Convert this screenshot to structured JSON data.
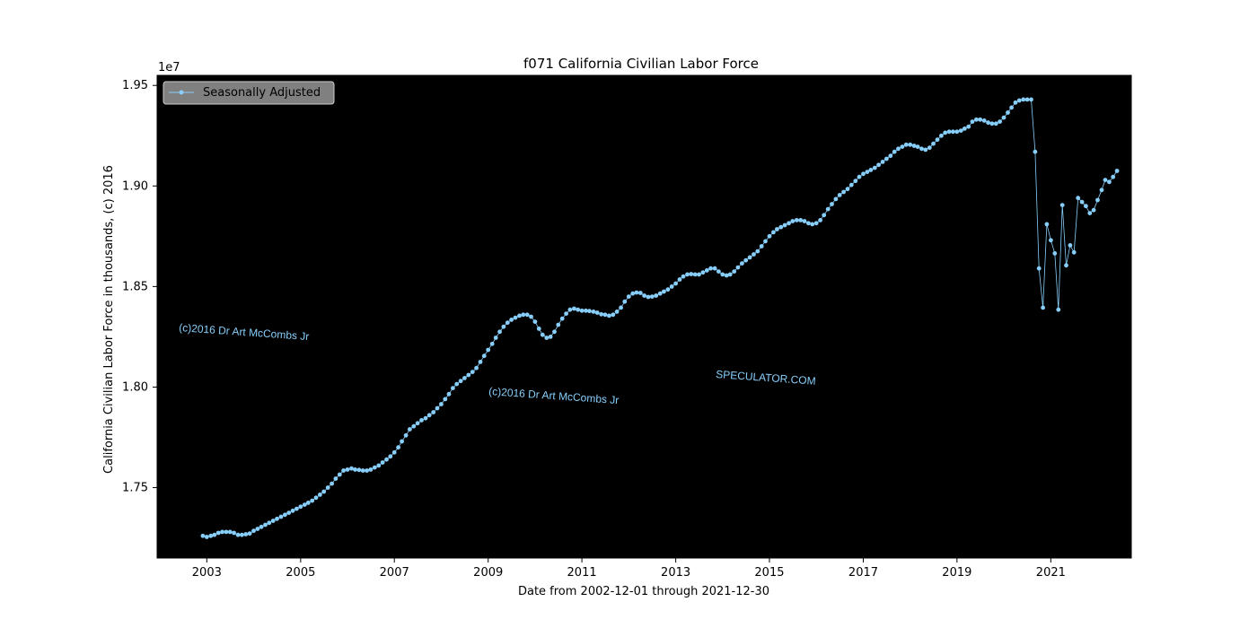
{
  "chart_data": {
    "type": "line",
    "title": "f071 California Civilian Labor Force",
    "xlabel": "Date from 2002-12-01 through 2021-12-30",
    "ylabel": "California Civilian Labor Force in thousands, (c) 2016",
    "y_offset_label": "1e7",
    "xlim": [
      "2001-12-10",
      "2022-09-20"
    ],
    "ylim": [
      17150000,
      19550000
    ],
    "x_ticks": [
      "2003",
      "2005",
      "2007",
      "2009",
      "2011",
      "2013",
      "2015",
      "2017",
      "2019",
      "2021"
    ],
    "y_ticks": [
      "1.75",
      "1.80",
      "1.85",
      "1.90",
      "1.95"
    ],
    "y_tick_values": [
      17500000,
      18000000,
      18500000,
      19000000,
      19500000
    ],
    "legend": {
      "position": "upper-left"
    },
    "grid": false,
    "colors": {
      "background": "#000000",
      "series": "#87cefa",
      "legend_box": "#808080"
    },
    "watermarks": [
      "(c)2016 Dr Art McCombs Jr",
      "(c)2016 Dr Art McCombs Jr",
      "SPECULATOR.COM"
    ],
    "series": [
      {
        "name": "Seasonally Adjusted",
        "x_start": "2002-12",
        "frequency": "monthly",
        "values": [
          17260000,
          17255000,
          17260000,
          17265000,
          17275000,
          17280000,
          17280000,
          17280000,
          17275000,
          17265000,
          17265000,
          17268000,
          17272000,
          17285000,
          17295000,
          17305000,
          17315000,
          17325000,
          17335000,
          17345000,
          17355000,
          17365000,
          17375000,
          17385000,
          17395000,
          17405000,
          17415000,
          17425000,
          17435000,
          17450000,
          17465000,
          17480000,
          17500000,
          17520000,
          17545000,
          17565000,
          17585000,
          17590000,
          17595000,
          17590000,
          17588000,
          17585000,
          17585000,
          17590000,
          17600000,
          17610000,
          17625000,
          17640000,
          17655000,
          17675000,
          17700000,
          17730000,
          17760000,
          17790000,
          17805000,
          17820000,
          17835000,
          17845000,
          17860000,
          17875000,
          17895000,
          17915000,
          17940000,
          17965000,
          17995000,
          18015000,
          18030000,
          18045000,
          18060000,
          18075000,
          18095000,
          18125000,
          18155000,
          18185000,
          18215000,
          18245000,
          18275000,
          18300000,
          18320000,
          18335000,
          18345000,
          18355000,
          18360000,
          18360000,
          18350000,
          18325000,
          18290000,
          18260000,
          18245000,
          18250000,
          18275000,
          18310000,
          18340000,
          18365000,
          18385000,
          18390000,
          18385000,
          18380000,
          18380000,
          18378000,
          18375000,
          18370000,
          18362000,
          18360000,
          18355000,
          18360000,
          18375000,
          18395000,
          18425000,
          18450000,
          18465000,
          18470000,
          18468000,
          18455000,
          18448000,
          18450000,
          18455000,
          18465000,
          18475000,
          18485000,
          18500000,
          18515000,
          18535000,
          18550000,
          18560000,
          18562000,
          18560000,
          18560000,
          18570000,
          18580000,
          18590000,
          18590000,
          18575000,
          18560000,
          18555000,
          18560000,
          18575000,
          18595000,
          18615000,
          18630000,
          18645000,
          18660000,
          18675000,
          18700000,
          18725000,
          18750000,
          18770000,
          18785000,
          18795000,
          18805000,
          18815000,
          18825000,
          18830000,
          18830000,
          18825000,
          18815000,
          18810000,
          18815000,
          18830000,
          18855000,
          18885000,
          18910000,
          18935000,
          18955000,
          18970000,
          18985000,
          19005000,
          19025000,
          19045000,
          19060000,
          19070000,
          19080000,
          19090000,
          19105000,
          19120000,
          19135000,
          19150000,
          19170000,
          19185000,
          19195000,
          19205000,
          19205000,
          19200000,
          19195000,
          19185000,
          19180000,
          19190000,
          19210000,
          19230000,
          19250000,
          19265000,
          19270000,
          19270000,
          19270000,
          19275000,
          19285000,
          19295000,
          19320000,
          19330000,
          19330000,
          19325000,
          19315000,
          19310000,
          19310000,
          19320000,
          19340000,
          19365000,
          19390000,
          19415000,
          19425000,
          19430000,
          19430000,
          19430000,
          19170000,
          18590000,
          18395000,
          18810000,
          18730000,
          18665000,
          18385000,
          18905000,
          18605000,
          18705000,
          18670000,
          18940000,
          18920000,
          18900000,
          18865000,
          18880000,
          18930000,
          18980000,
          19030000,
          19020000,
          19045000,
          19075000
        ]
      }
    ]
  }
}
